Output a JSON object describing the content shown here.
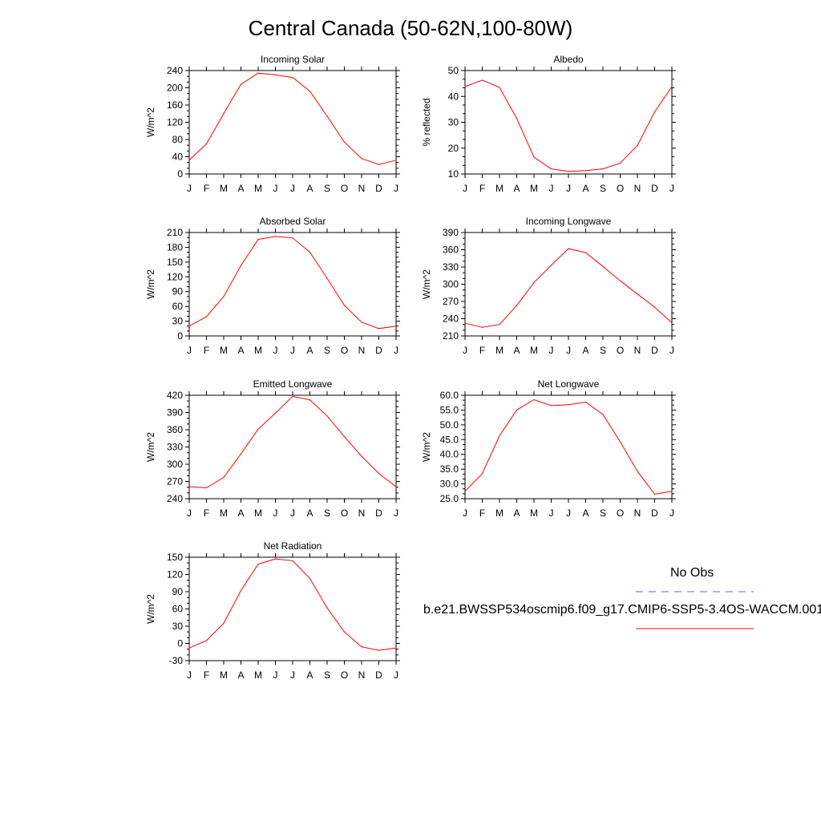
{
  "page": {
    "title": "Central Canada (50-62N,100-80W)"
  },
  "legend": {
    "obs_label": "No Obs",
    "case_label": "b.e21.BWSSP534oscmip6.f09_g17.CMIP6-SSP5-3.4OS-WACCM.001",
    "obs_color": "#6060e0",
    "case_color": "#ff0000"
  },
  "chart_data": [
    {
      "type": "line",
      "title": "Incoming Solar",
      "xlabel": "",
      "ylabel": "W/m^2",
      "x": [
        "J",
        "F",
        "M",
        "A",
        "M",
        "J",
        "J",
        "A",
        "S",
        "O",
        "N",
        "D",
        "J"
      ],
      "ylim": [
        0,
        240
      ],
      "yticks": [
        "0",
        "40",
        "80",
        "120",
        "160",
        "200",
        "240"
      ],
      "series": [
        {
          "values": [
            32,
            70,
            140,
            208,
            234,
            230,
            224,
            192,
            134,
            74,
            36,
            22,
            32
          ]
        }
      ]
    },
    {
      "type": "line",
      "title": "Albedo",
      "xlabel": "",
      "ylabel": "% reflected",
      "x": [
        "J",
        "F",
        "M",
        "A",
        "M",
        "J",
        "J",
        "A",
        "S",
        "O",
        "N",
        "D",
        "J"
      ],
      "ylim": [
        10,
        50
      ],
      "yticks": [
        "10",
        "20",
        "30",
        "40",
        "50"
      ],
      "series": [
        {
          "values": [
            43.8,
            46.3,
            43.5,
            31.5,
            16.5,
            12,
            11,
            11.3,
            12,
            14.2,
            21,
            34,
            43.8
          ]
        }
      ]
    },
    {
      "type": "line",
      "title": "Absorbed Solar",
      "xlabel": "",
      "ylabel": "W/m^2",
      "x": [
        "J",
        "F",
        "M",
        "A",
        "M",
        "J",
        "J",
        "A",
        "S",
        "O",
        "N",
        "D",
        "J"
      ],
      "ylim": [
        0,
        210
      ],
      "yticks": [
        "0",
        "30",
        "60",
        "90",
        "120",
        "150",
        "180",
        "210"
      ],
      "series": [
        {
          "values": [
            20,
            39,
            80,
            143,
            196,
            202,
            199,
            170,
            117,
            62,
            28,
            15,
            20
          ]
        }
      ]
    },
    {
      "type": "line",
      "title": "Incoming Longwave",
      "xlabel": "",
      "ylabel": "W/m^2",
      "x": [
        "J",
        "F",
        "M",
        "A",
        "M",
        "J",
        "J",
        "A",
        "S",
        "O",
        "N",
        "D",
        "J"
      ],
      "ylim": [
        210,
        390
      ],
      "yticks": [
        "210",
        "240",
        "270",
        "300",
        "330",
        "360",
        "390"
      ],
      "series": [
        {
          "values": [
            232,
            225,
            230,
            263,
            303,
            333,
            362,
            355,
            331,
            306,
            283,
            260,
            233
          ]
        }
      ]
    },
    {
      "type": "line",
      "title": "Emitted Longwave",
      "xlabel": "",
      "ylabel": "W/m^2",
      "x": [
        "J",
        "F",
        "M",
        "A",
        "M",
        "J",
        "J",
        "A",
        "S",
        "O",
        "N",
        "D",
        "J"
      ],
      "ylim": [
        240,
        420
      ],
      "yticks": [
        "240",
        "270",
        "300",
        "330",
        "360",
        "390",
        "420"
      ],
      "series": [
        {
          "values": [
            261,
            259,
            277,
            318,
            361,
            389,
            418,
            412,
            384,
            348,
            314,
            284,
            261
          ]
        }
      ]
    },
    {
      "type": "line",
      "title": "Net Longwave",
      "xlabel": "",
      "ylabel": "W/m^2",
      "x": [
        "J",
        "F",
        "M",
        "A",
        "M",
        "J",
        "J",
        "A",
        "S",
        "O",
        "N",
        "D",
        "J"
      ],
      "ylim": [
        25,
        60
      ],
      "yticks": [
        "25.0",
        "30.0",
        "35.0",
        "40.0",
        "45.0",
        "50.0",
        "55.0",
        "60.0"
      ],
      "series": [
        {
          "values": [
            27.5,
            33.5,
            46.3,
            55,
            58.5,
            56.5,
            56.8,
            57.7,
            53.5,
            44.3,
            34.3,
            26.5,
            27.5
          ]
        }
      ]
    },
    {
      "type": "line",
      "title": "Net Radiation",
      "xlabel": "",
      "ylabel": "W/m^2",
      "x": [
        "J",
        "F",
        "M",
        "A",
        "M",
        "J",
        "J",
        "A",
        "S",
        "O",
        "N",
        "D",
        "J"
      ],
      "ylim": [
        -30,
        150
      ],
      "yticks": [
        "-30",
        "0",
        "30",
        "60",
        "90",
        "120",
        "150"
      ],
      "series": [
        {
          "values": [
            -8,
            5,
            35,
            92,
            138,
            147,
            144,
            113,
            62,
            20,
            -6,
            -12,
            -8
          ]
        }
      ]
    }
  ]
}
